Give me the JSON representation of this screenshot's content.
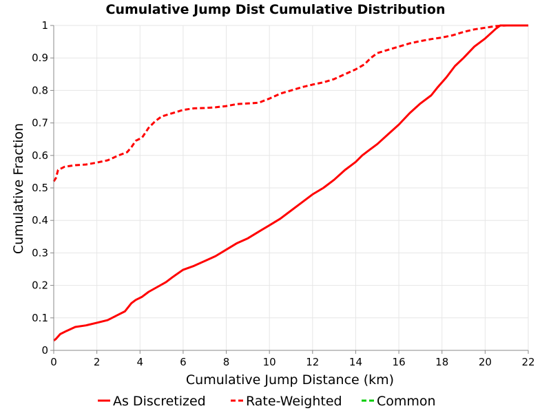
{
  "chart_data": {
    "type": "line",
    "title": "Cumulative Jump Dist Cumulative Distribution",
    "xlabel": "Cumulative Jump Distance (km)",
    "ylabel": "Cumulative Fraction",
    "xlim": [
      0,
      22
    ],
    "ylim": [
      0,
      1
    ],
    "xticks": [
      "0",
      "2",
      "4",
      "6",
      "8",
      "10",
      "12",
      "14",
      "16",
      "18",
      "20",
      "22"
    ],
    "yticks": [
      "0",
      "0.1",
      "0.2",
      "0.3",
      "0.4",
      "0.5",
      "0.6",
      "0.7",
      "0.8",
      "0.9",
      "1"
    ],
    "grid": true,
    "legend_position": "bottom",
    "series": [
      {
        "name": "As Discretized",
        "color": "#ff0000",
        "dash": "solid",
        "points": [
          [
            0,
            0.03
          ],
          [
            0.1,
            0.035
          ],
          [
            0.3,
            0.05
          ],
          [
            0.6,
            0.06
          ],
          [
            1,
            0.072
          ],
          [
            1.5,
            0.077
          ],
          [
            2,
            0.085
          ],
          [
            2.5,
            0.093
          ],
          [
            3,
            0.11
          ],
          [
            3.3,
            0.12
          ],
          [
            3.6,
            0.145
          ],
          [
            3.8,
            0.155
          ],
          [
            4.1,
            0.165
          ],
          [
            4.4,
            0.18
          ],
          [
            4.8,
            0.195
          ],
          [
            5.2,
            0.21
          ],
          [
            5.5,
            0.225
          ],
          [
            6,
            0.248
          ],
          [
            6.5,
            0.26
          ],
          [
            7,
            0.275
          ],
          [
            7.5,
            0.29
          ],
          [
            8,
            0.31
          ],
          [
            8.5,
            0.33
          ],
          [
            9,
            0.345
          ],
          [
            9.5,
            0.365
          ],
          [
            10,
            0.385
          ],
          [
            10.5,
            0.405
          ],
          [
            11,
            0.43
          ],
          [
            11.5,
            0.455
          ],
          [
            12,
            0.48
          ],
          [
            12.5,
            0.5
          ],
          [
            13,
            0.525
          ],
          [
            13.5,
            0.555
          ],
          [
            14,
            0.58
          ],
          [
            14.3,
            0.6
          ],
          [
            14.6,
            0.615
          ],
          [
            15,
            0.635
          ],
          [
            15.5,
            0.665
          ],
          [
            16,
            0.695
          ],
          [
            16.5,
            0.73
          ],
          [
            17,
            0.76
          ],
          [
            17.5,
            0.785
          ],
          [
            17.8,
            0.81
          ],
          [
            18.2,
            0.84
          ],
          [
            18.6,
            0.875
          ],
          [
            19,
            0.9
          ],
          [
            19.5,
            0.935
          ],
          [
            20,
            0.96
          ],
          [
            20.5,
            0.99
          ],
          [
            20.7,
            1
          ],
          [
            21,
            1
          ],
          [
            22,
            1
          ]
        ]
      },
      {
        "name": "Rate-Weighted",
        "color": "#ff0000",
        "dash": "dashed",
        "points": [
          [
            0,
            0.52
          ],
          [
            0.1,
            0.53
          ],
          [
            0.2,
            0.555
          ],
          [
            0.5,
            0.565
          ],
          [
            0.8,
            0.568
          ],
          [
            1,
            0.57
          ],
          [
            1.5,
            0.572
          ],
          [
            2,
            0.578
          ],
          [
            2.5,
            0.585
          ],
          [
            3,
            0.6
          ],
          [
            3.4,
            0.61
          ],
          [
            3.6,
            0.625
          ],
          [
            3.8,
            0.645
          ],
          [
            4.1,
            0.655
          ],
          [
            4.4,
            0.685
          ],
          [
            4.7,
            0.705
          ],
          [
            5,
            0.72
          ],
          [
            5.5,
            0.73
          ],
          [
            6,
            0.74
          ],
          [
            6.5,
            0.745
          ],
          [
            7,
            0.746
          ],
          [
            7.5,
            0.748
          ],
          [
            8,
            0.752
          ],
          [
            8.5,
            0.758
          ],
          [
            9,
            0.76
          ],
          [
            9.5,
            0.762
          ],
          [
            10,
            0.775
          ],
          [
            10.5,
            0.79
          ],
          [
            11,
            0.8
          ],
          [
            11.5,
            0.81
          ],
          [
            12,
            0.818
          ],
          [
            12.5,
            0.825
          ],
          [
            13,
            0.835
          ],
          [
            13.5,
            0.85
          ],
          [
            14,
            0.865
          ],
          [
            14.4,
            0.88
          ],
          [
            14.7,
            0.9
          ],
          [
            15,
            0.915
          ],
          [
            15.5,
            0.925
          ],
          [
            16,
            0.935
          ],
          [
            16.5,
            0.945
          ],
          [
            17,
            0.952
          ],
          [
            17.5,
            0.958
          ],
          [
            18,
            0.963
          ],
          [
            18.5,
            0.97
          ],
          [
            19,
            0.98
          ],
          [
            19.5,
            0.988
          ],
          [
            20,
            0.993
          ],
          [
            20.5,
            0.998
          ],
          [
            21,
            1
          ],
          [
            22,
            1
          ]
        ]
      },
      {
        "name": "Common",
        "color": "#00cc00",
        "dash": "dashed",
        "points": []
      }
    ]
  }
}
